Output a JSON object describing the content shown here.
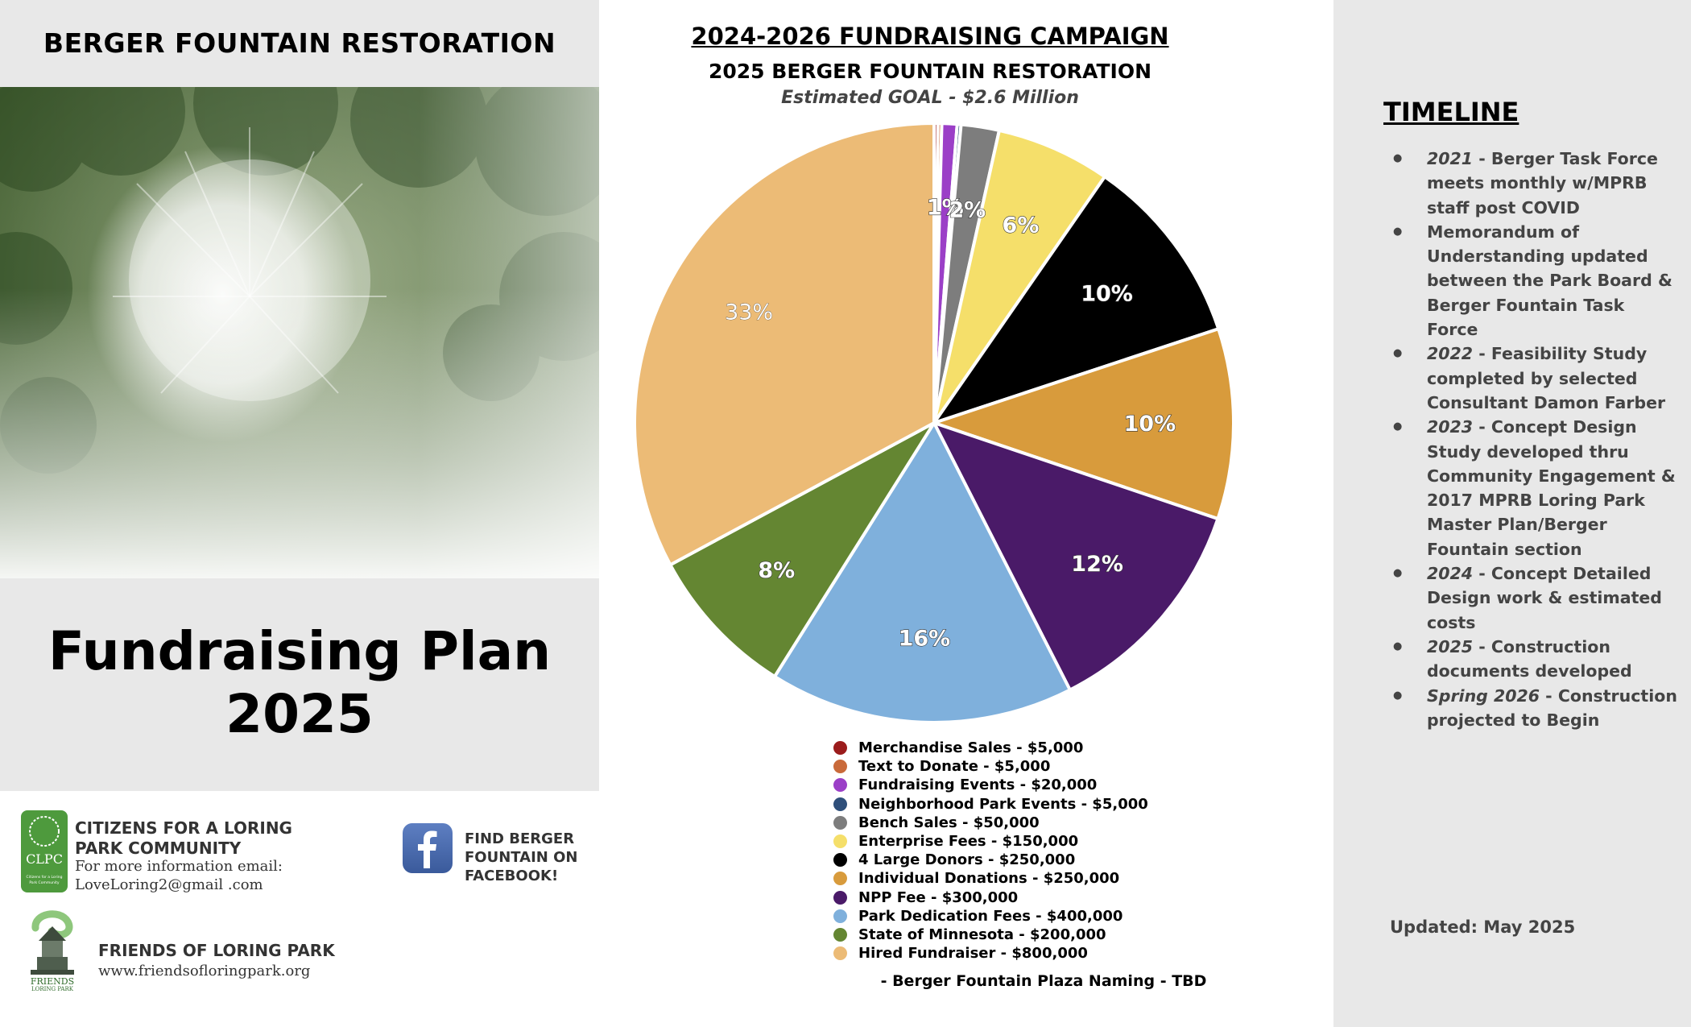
{
  "left": {
    "title": "BERGER FOUNTAIN RESTORATION",
    "plan_title_line1": "Fundraising Plan",
    "plan_title_line2": "2025",
    "clpc": {
      "name": "CITIZENS FOR A LORING PARK COMMUNITY",
      "info_line1": "For more information email:",
      "info_line2": "LoveLoring2@gmail .com",
      "logo_text": "CLPC",
      "logo_subtext": "Citizens for a Loring Park Community"
    },
    "facebook": {
      "text": "FIND BERGER FOUNTAIN ON FACEBOOK!"
    },
    "flp": {
      "name": "FRIENDS OF LORING PARK",
      "url": "www.friendsofloringpark.org",
      "logo_text_1": "FRIENDS",
      "logo_text_2": "LORING PARK"
    }
  },
  "center": {
    "campaign_title": "2024-2026 FUNDRAISING CAMPAIGN",
    "legend_note": "- Berger Fountain Plaza Naming - TBD"
  },
  "chart_data": {
    "type": "pie",
    "title": "2025 BERGER FOUNTAIN RESTORATION",
    "subtitle": "Estimated GOAL - $2.6 Million",
    "legend_position": "bottom",
    "slices": [
      {
        "label": "Merchandise Sales - $5,000",
        "value": 5000,
        "color": "#9b1c1c",
        "pct_label": ""
      },
      {
        "label": "Text to Donate - $5,000",
        "value": 5000,
        "color": "#c96a3a",
        "pct_label": ""
      },
      {
        "label": "Fundraising Events - $20,000",
        "value": 20000,
        "color": "#9b3fc7",
        "pct_label": "1%"
      },
      {
        "label": "Neighborhood Park Events - $5,000",
        "value": 5000,
        "color": "#2f4f7a",
        "pct_label": ""
      },
      {
        "label": "Bench Sales - $50,000",
        "value": 50000,
        "color": "#7d7d7d",
        "pct_label": "2%"
      },
      {
        "label": "Enterprise Fees - $150,000",
        "value": 150000,
        "color": "#f5df6a",
        "pct_label": "6%"
      },
      {
        "label": "4 Large Donors - $250,000",
        "value": 250000,
        "color": "#000000",
        "pct_label": "10%"
      },
      {
        "label": "Individual Donations - $250,000",
        "value": 250000,
        "color": "#d89b3c",
        "pct_label": "10%"
      },
      {
        "label": "NPP Fee - $300,000",
        "value": 300000,
        "color": "#4a1a68",
        "pct_label": "12%"
      },
      {
        "label": "Park Dedication Fees - $400,000",
        "value": 400000,
        "color": "#7fb0dc",
        "pct_label": "16%"
      },
      {
        "label": "State of Minnesota - $200,000",
        "value": 200000,
        "color": "#648632",
        "pct_label": "8%"
      },
      {
        "label": "Hired Fundraiser - $800,000",
        "value": 800000,
        "color": "#ecbb76",
        "pct_label": "33%"
      }
    ]
  },
  "right": {
    "timeline_title": "TIMELINE",
    "items": [
      {
        "year": "2021",
        "text": " - Berger Task Force meets monthly w/MPRB staff post COVID"
      },
      {
        "year": "",
        "text": "Memorandum of Understanding updated between the Park Board & Berger Fountain Task Force"
      },
      {
        "year": "2022",
        "text": " - Feasibility Study completed by selected Consultant Damon Farber"
      },
      {
        "year": "2023",
        "text": " - Concept Design Study developed thru Community Engagement & 2017 MPRB Loring Park Master Plan/Berger Fountain section"
      },
      {
        "year": "2024",
        "text": " - Concept Detailed Design work & estimated costs"
      },
      {
        "year": "2025",
        "text": " - Construction documents developed"
      },
      {
        "year": "Spring 2026",
        "text": " - Construction projected to Begin"
      }
    ],
    "updated": "Updated: May 2025"
  }
}
